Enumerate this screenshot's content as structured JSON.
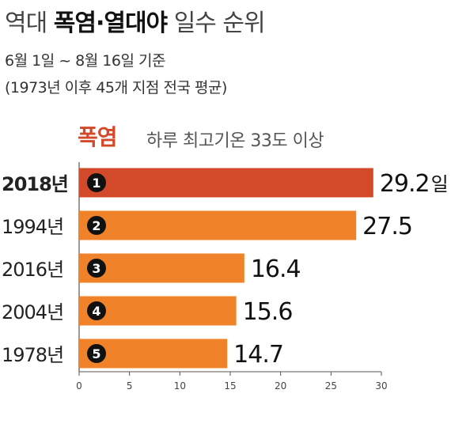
{
  "header": {
    "title_prefix": "역대 ",
    "title_bold": "폭염·열대야",
    "title_suffix": " 일수 순위",
    "period": "6월 1일 ~ 8월 16일 기준",
    "note": "(1973년 이후 45개 지점 전국 평균)"
  },
  "section": {
    "title": "폭염",
    "description": "하루 최고기온 33도 이상"
  },
  "chart_data": {
    "type": "bar",
    "orientation": "horizontal",
    "categories": [
      "2018년",
      "1994년",
      "2016년",
      "2004년",
      "1978년"
    ],
    "ranks": [
      "1",
      "2",
      "3",
      "4",
      "5"
    ],
    "values": [
      29.2,
      27.5,
      16.4,
      15.6,
      14.7
    ],
    "value_labels": [
      "29.2",
      "27.5",
      "16.4",
      "15.6",
      "14.7"
    ],
    "unit": "일",
    "xlim": [
      0,
      30
    ],
    "xticks": [
      0,
      5,
      10,
      15,
      20,
      25,
      30
    ],
    "colors": {
      "highlight": "#d24a2a",
      "bar": "#f0822a"
    },
    "highlight_index": 0,
    "grid": false
  }
}
